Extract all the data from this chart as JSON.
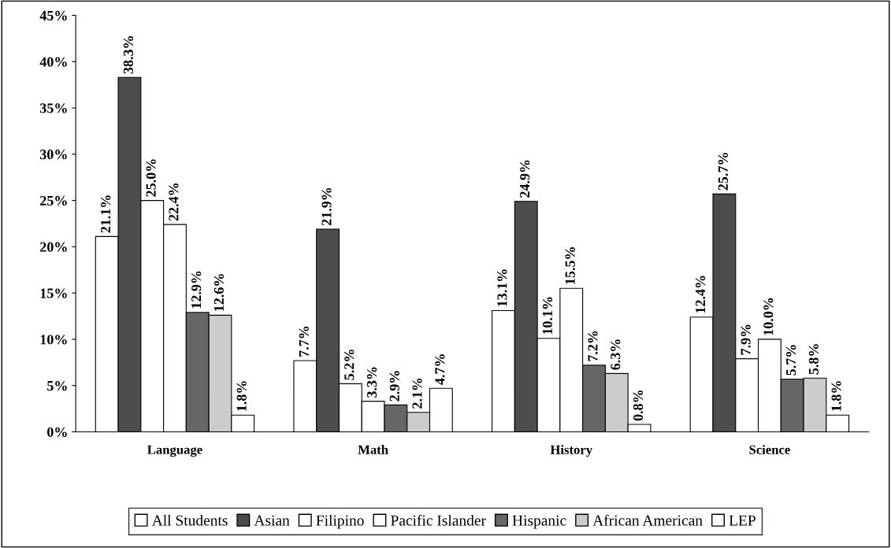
{
  "chart_data": {
    "type": "bar",
    "categories": [
      "Language",
      "Math",
      "History",
      "Science"
    ],
    "series": [
      {
        "name": "All Students",
        "color": "#ffffff",
        "values": [
          21.1,
          7.7,
          13.1,
          12.4
        ],
        "value_labels": [
          "21.1%",
          "7.7%",
          "13.1%",
          "12.4%"
        ]
      },
      {
        "name": "Asian",
        "color": "#4d4d4d",
        "values": [
          38.3,
          21.9,
          24.9,
          25.7
        ],
        "value_labels": [
          "38.3%",
          "21.9%",
          "24.9%",
          "25.7%"
        ]
      },
      {
        "name": "Filipino",
        "color": "#ffffff",
        "values": [
          25.0,
          5.2,
          10.1,
          7.9
        ],
        "value_labels": [
          "25.0%",
          "5.2%",
          "10.1%",
          "7.9%"
        ]
      },
      {
        "name": "Pacific Islander",
        "color": "#ffffff",
        "values": [
          22.4,
          3.3,
          15.5,
          10.0
        ],
        "value_labels": [
          "22.4%",
          "3.3%",
          "15.5%",
          "10.0%"
        ]
      },
      {
        "name": "Hispanic",
        "color": "#666666",
        "values": [
          12.9,
          2.9,
          7.2,
          5.7
        ],
        "value_labels": [
          "12.9%",
          "2.9%",
          "7.2%",
          "5.7%"
        ]
      },
      {
        "name": "African American",
        "color": "#cccccc",
        "values": [
          12.6,
          2.1,
          6.3,
          5.8
        ],
        "value_labels": [
          "12.6%",
          "2.1%",
          "6.3%",
          "5.8%"
        ]
      },
      {
        "name": "LEP",
        "color": "#ffffff",
        "values": [
          1.8,
          4.7,
          0.8,
          1.8
        ],
        "value_labels": [
          "1.8%",
          "4.7%",
          "0.8%",
          "1.8%"
        ]
      }
    ],
    "ylim": [
      0,
      45
    ],
    "yticks": [
      {
        "value": 0,
        "label": "0%"
      },
      {
        "value": 5,
        "label": "5%"
      },
      {
        "value": 10,
        "label": "10%"
      },
      {
        "value": 15,
        "label": "15%"
      },
      {
        "value": 20,
        "label": "20%"
      },
      {
        "value": 25,
        "label": "25%"
      },
      {
        "value": 30,
        "label": "30%"
      },
      {
        "value": 35,
        "label": "35%"
      },
      {
        "value": 40,
        "label": "40%"
      },
      {
        "value": 45,
        "label": "45%"
      }
    ],
    "grid": false,
    "legend": "bottom"
  }
}
